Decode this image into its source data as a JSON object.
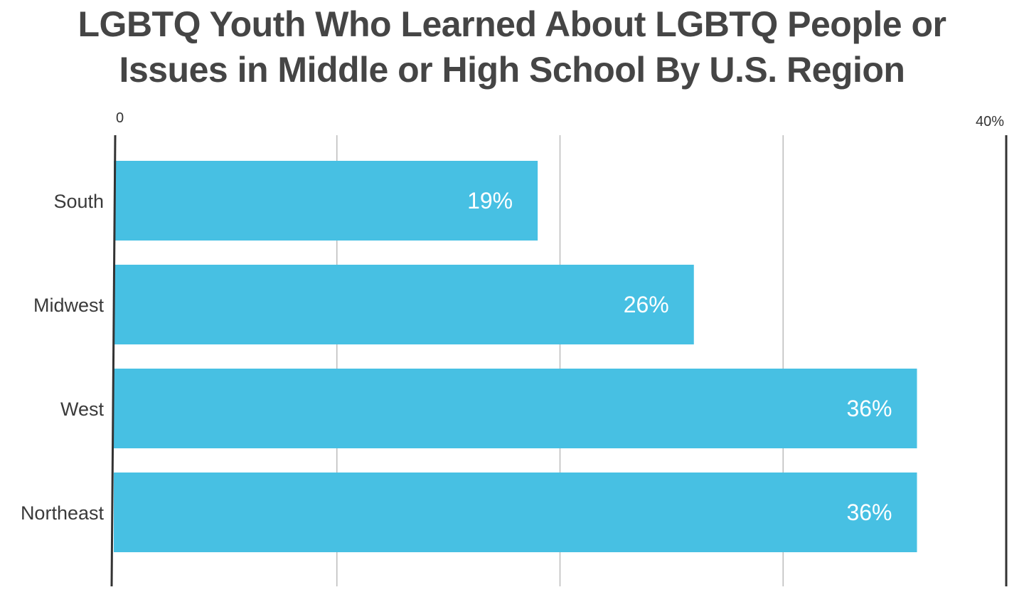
{
  "chart_data": {
    "type": "bar",
    "orientation": "horizontal",
    "title_lines": [
      "LGBTQ Youth Who Learned About LGBTQ People or",
      "Issues in Middle or High School By U.S. Region"
    ],
    "categories": [
      "South",
      "Midwest",
      "West",
      "Northeast"
    ],
    "values": [
      19,
      26,
      36,
      36
    ],
    "data_labels": [
      "19%",
      "26%",
      "36%",
      "36%"
    ],
    "xlim": [
      0,
      40
    ],
    "x_tick_labels": [
      "0",
      "40%"
    ],
    "xlabel": "",
    "ylabel": "",
    "grid": true,
    "bar_color": "#47C0E3",
    "axis_color": "#333333",
    "grid_color": "#bdbdbd"
  }
}
